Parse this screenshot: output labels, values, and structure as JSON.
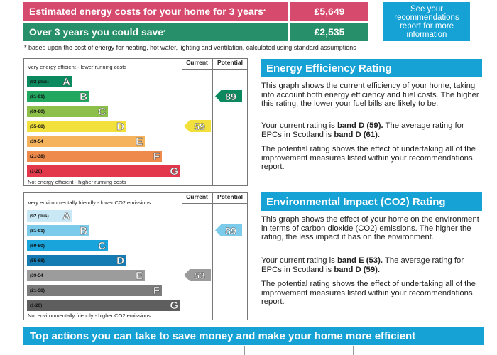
{
  "costs": {
    "row1": {
      "label": "Estimated energy costs for your home for 3 years",
      "mark": "*",
      "value": "£5,649",
      "color": "#d64a6e"
    },
    "row2": {
      "label": "Over 3 years you could save",
      "mark": "*",
      "value": "£2,535",
      "color": "#27906a"
    },
    "see_box": "See your recommendations report for more information",
    "footnote": "* based upon the cost of energy for heating, hot water, lighting and ventilation, calculated using standard assumptions"
  },
  "energy_chart": {
    "top_text": "Very energy efficient - lower running costs",
    "bottom_text": "Not energy efficient - higher running costs",
    "col_current": "Current",
    "col_potential": "Potential",
    "bands": [
      {
        "range": "(92 plus)",
        "letter": "A",
        "color": "#0a8a5e"
      },
      {
        "range": "(81-91)",
        "letter": "B",
        "color": "#21a760"
      },
      {
        "range": "(69-80)",
        "letter": "C",
        "color": "#8cc04a"
      },
      {
        "range": "(55-68)",
        "letter": "D",
        "color": "#f2e13c"
      },
      {
        "range": "(39-54",
        "letter": "E",
        "color": "#f6b35d"
      },
      {
        "range": "(21-38)",
        "letter": "F",
        "color": "#ee8a4b"
      },
      {
        "range": "(1-20)",
        "letter": "G",
        "color": "#e3384b"
      }
    ],
    "current": {
      "value": "59",
      "band_index": 3,
      "color": "#f2e13c"
    },
    "potential": {
      "value": "89",
      "band_index": 1,
      "color": "#0a8a5e"
    }
  },
  "env_chart": {
    "top_text": "Very environmentally friendly - lower CO2 emissions",
    "bottom_text": "Not environmentally friendly - higher CO2 emissions",
    "col_current": "Current",
    "col_potential": "Potential",
    "bands": [
      {
        "range": "(92 plus)",
        "letter": "A",
        "color": "#c9e8f5"
      },
      {
        "range": "(81-91)",
        "letter": "B",
        "color": "#7ccbea"
      },
      {
        "range": "(69-80)",
        "letter": "C",
        "color": "#19a4dc"
      },
      {
        "range": "(55-68)",
        "letter": "D",
        "color": "#157cb3"
      },
      {
        "range": "(39-54",
        "letter": "E",
        "color": "#9c9c9c"
      },
      {
        "range": "(21-38)",
        "letter": "F",
        "color": "#7c7c7c"
      },
      {
        "range": "(1-20)",
        "letter": "G",
        "color": "#5e5e5e"
      }
    ],
    "current": {
      "value": "53",
      "band_index": 4,
      "color": "#9c9c9c"
    },
    "potential": {
      "value": "89",
      "band_index": 1,
      "color": "#7ccbea"
    }
  },
  "energy_panel": {
    "title": "Energy Efficiency Rating",
    "p1": "This graph shows the current efficiency of your home, taking into account both energy efficiency and fuel costs. The higher this rating, the lower your fuel bills are likely to be.",
    "p2_pre": "Your current rating is ",
    "p2_bold1": "band D (59).",
    "p2_mid": " The average rating for EPCs in Scotland is ",
    "p2_bold2": "band D (61).",
    "p3": "The potential rating shows the effect of undertaking all of the improvement measures listed within your recommendations report."
  },
  "env_panel": {
    "title": "Environmental Impact (CO2) Rating",
    "p1": "This graph shows the effect of your home on the environment in terms of carbon dioxide (CO2) emissions. The higher the rating, the less impact it has on the environment.",
    "p2_pre": "Your current rating is ",
    "p2_bold1": "band E (53).",
    "p2_mid": " The average rating for EPCs in Scotland is ",
    "p2_bold2": "band D (59).",
    "p3": "The potential rating shows the effect of undertaking all of the improvement measures listed within your recommendations report."
  },
  "banner": "Top actions you can take to save money and make your home more efficient"
}
